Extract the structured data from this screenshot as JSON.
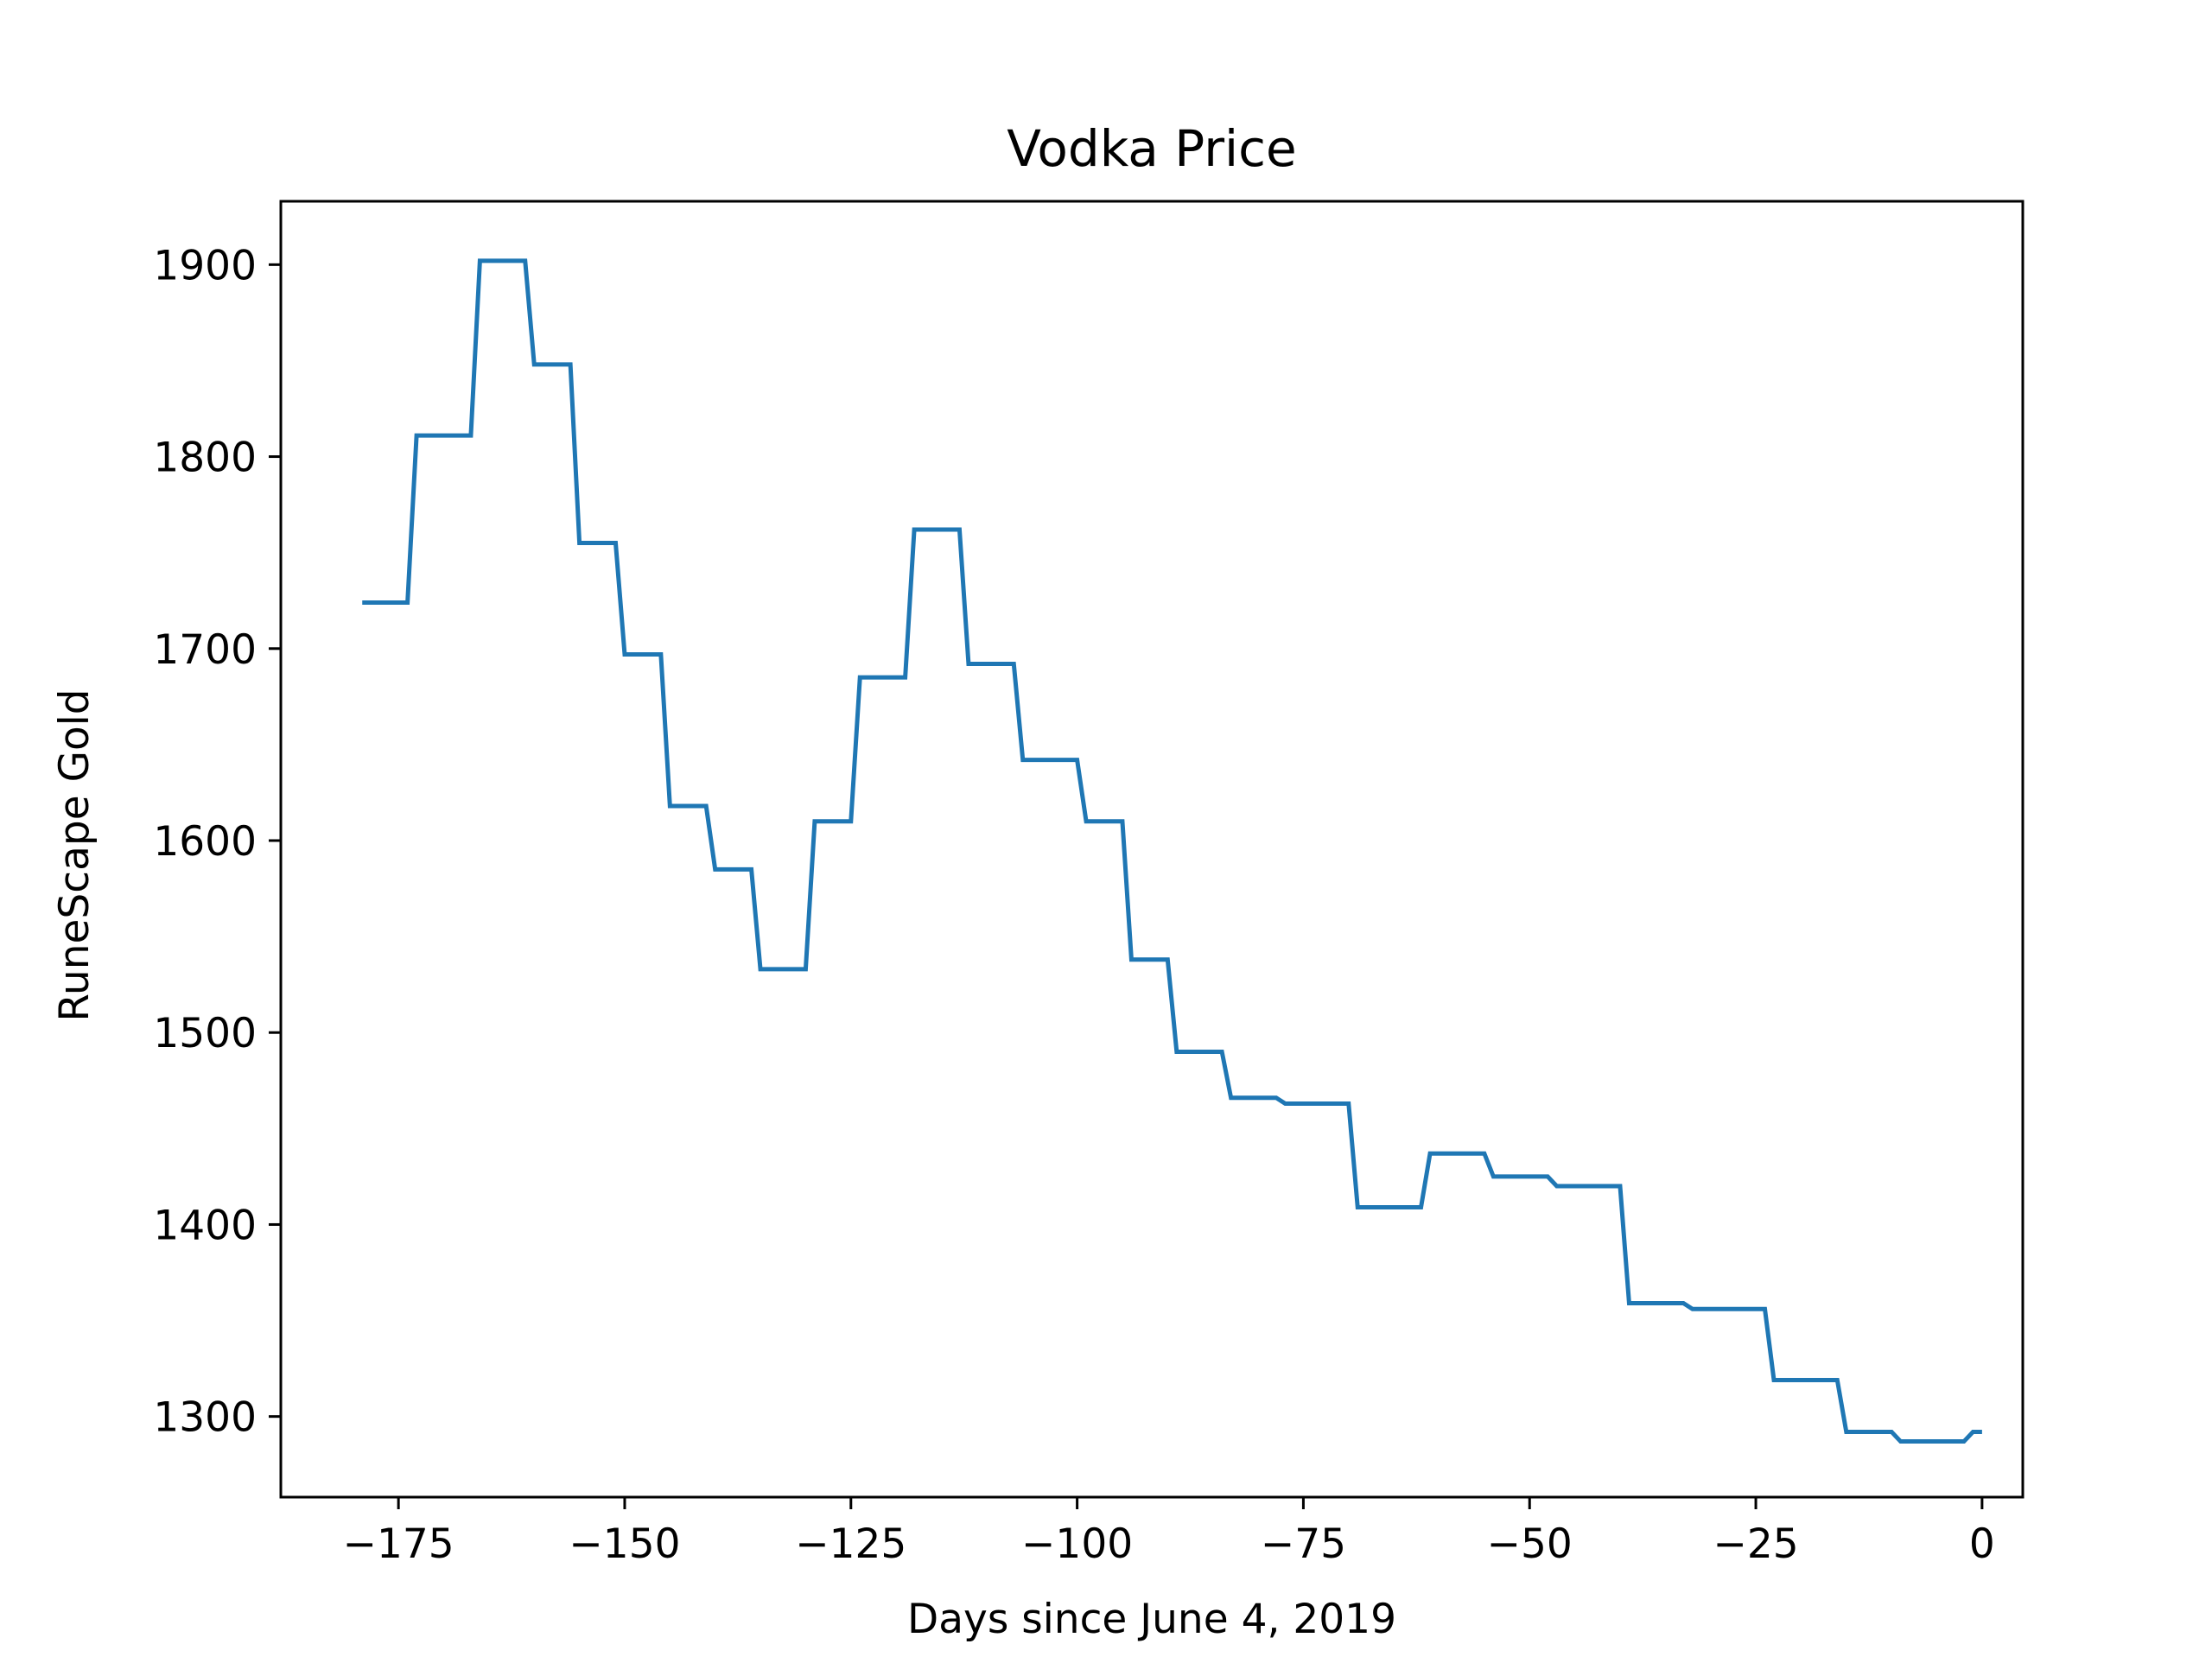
{
  "chart_data": {
    "type": "line",
    "title": "Vodka Price",
    "xlabel": "Days since June 4, 2019",
    "ylabel": "RuneScape Gold",
    "xlim": [
      -188,
      4.5
    ],
    "ylim": [
      1258,
      1933
    ],
    "xticks": [
      -175,
      -150,
      -125,
      -100,
      -75,
      -50,
      -25,
      0
    ],
    "xtick_labels": [
      "−175",
      "−150",
      "−125",
      "−100",
      "−75",
      "−50",
      "−25",
      "0"
    ],
    "yticks": [
      1300,
      1400,
      1500,
      1600,
      1700,
      1800,
      1900
    ],
    "ytick_labels": [
      "1300",
      "1400",
      "1500",
      "1600",
      "1700",
      "1800",
      "1900"
    ],
    "grid": false,
    "series": [
      {
        "color": "#1f77b4",
        "x": [
          -179,
          -174,
          -173,
          -167,
          -166,
          -161,
          -160,
          -156,
          -155,
          -151,
          -150,
          -146,
          -145,
          -141,
          -140,
          -136,
          -135,
          -130,
          -129,
          -125,
          -124,
          -119,
          -118,
          -113,
          -112,
          -107,
          -106,
          -100,
          -99,
          -95,
          -94,
          -90,
          -89,
          -84,
          -83,
          -78,
          -77,
          -70,
          -69,
          -62,
          -61,
          -55,
          -54,
          -48,
          -47,
          -40,
          -39,
          -33,
          -32,
          -24,
          -23,
          -16,
          -15,
          -10,
          -9,
          -2,
          -1,
          0
        ],
        "y": [
          1724,
          1724,
          1811,
          1811,
          1902,
          1902,
          1848,
          1848,
          1755,
          1755,
          1697,
          1697,
          1618,
          1618,
          1585,
          1585,
          1533,
          1533,
          1610,
          1610,
          1685,
          1685,
          1762,
          1762,
          1692,
          1692,
          1642,
          1642,
          1610,
          1610,
          1538,
          1538,
          1490,
          1490,
          1466,
          1466,
          1463,
          1463,
          1409,
          1409,
          1437,
          1437,
          1425,
          1425,
          1420,
          1420,
          1359,
          1359,
          1356,
          1356,
          1319,
          1319,
          1292,
          1292,
          1287,
          1287,
          1292,
          1292
        ]
      }
    ]
  }
}
